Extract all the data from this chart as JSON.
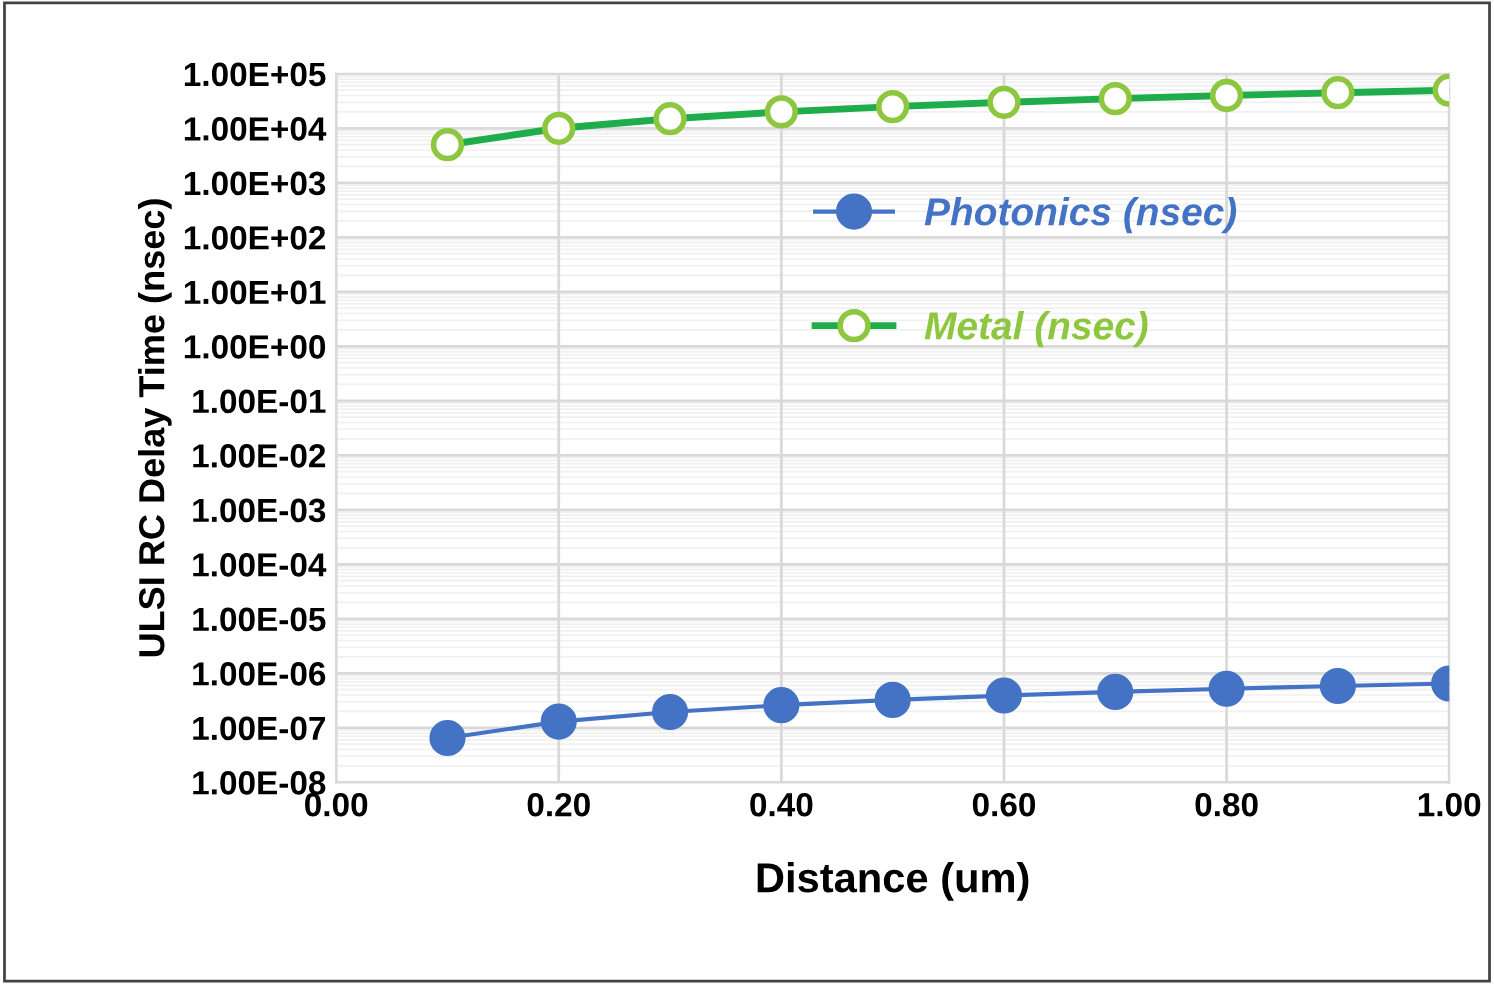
{
  "chart_data": {
    "type": "line",
    "xlabel": "Distance (um)",
    "ylabel": "ULSI RC Delay Time (nsec)",
    "x": [
      0.1,
      0.2,
      0.3,
      0.4,
      0.5,
      0.6,
      0.7,
      0.8,
      0.9,
      1.0
    ],
    "series": [
      {
        "name": "Photonics (nsec)",
        "color": "#4472c4",
        "marker": "circle",
        "values": [
          6.5e-08,
          1.3e-07,
          1.95e-07,
          2.6e-07,
          3.25e-07,
          3.9e-07,
          4.55e-07,
          5.2e-07,
          5.85e-07,
          6.5e-07
        ]
      },
      {
        "name": "Metal (nsec)",
        "color": "#1fad4c",
        "marker": "circle",
        "values": [
          5000,
          10000,
          15000,
          20000,
          25000,
          30000,
          35000,
          40000,
          45000,
          50000
        ]
      }
    ],
    "log": "y",
    "xlim": [
      0,
      1
    ],
    "xticks": [
      {
        "value": 0,
        "label": "0.00"
      },
      {
        "value": 0.2,
        "label": "0.20"
      },
      {
        "value": 0.4,
        "label": "0.40"
      },
      {
        "value": 0.6,
        "label": "0.60"
      },
      {
        "value": 0.8,
        "label": "0.80"
      },
      {
        "value": 1,
        "label": "1.00"
      }
    ],
    "ylim": [
      1e-08,
      100000.0
    ],
    "yticks": [
      {
        "value": 1e-08,
        "label": "1.00E-08"
      },
      {
        "value": 1e-07,
        "label": "1.00E-07"
      },
      {
        "value": 1e-06,
        "label": "1.00E-06"
      },
      {
        "value": 1e-05,
        "label": "1.00E-05"
      },
      {
        "value": 0.0001,
        "label": "1.00E-04"
      },
      {
        "value": 0.001,
        "label": "1.00E-03"
      },
      {
        "value": 0.01,
        "label": "1.00E-02"
      },
      {
        "value": 0.1,
        "label": "1.00E-01"
      },
      {
        "value": 1,
        "label": "1.00E+00"
      },
      {
        "value": 10,
        "label": "1.00E+01"
      },
      {
        "value": 100,
        "label": "1.00E+02"
      },
      {
        "value": 1000,
        "label": "1.00E+03"
      },
      {
        "value": 10000,
        "label": "1.00E+04"
      },
      {
        "value": 100000,
        "label": "1.00E+05"
      }
    ],
    "grid": true,
    "legend": "center",
    "line_style": "solid"
  }
}
